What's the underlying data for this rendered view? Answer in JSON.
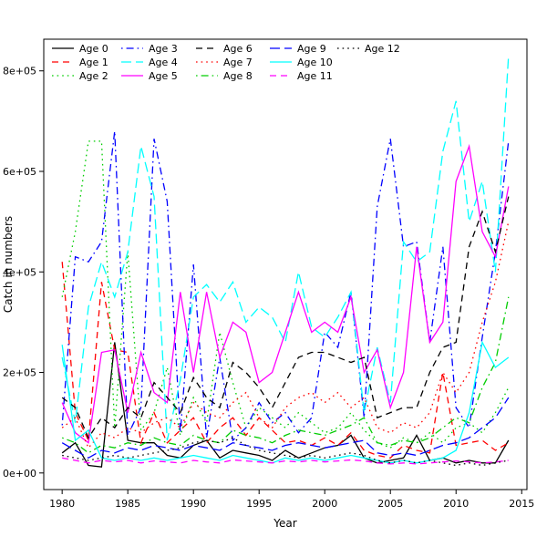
{
  "chart_data": {
    "type": "line",
    "title": "",
    "xlabel": "Year",
    "ylabel": "Catch in numbers",
    "grid": false,
    "legend_position": "top-inside",
    "legend_columns": 5,
    "xlim": [
      1978.6,
      2015.4
    ],
    "ylim": [
      -33000,
      863000
    ],
    "x_ticks": [
      1980,
      1985,
      1990,
      1995,
      2000,
      2005,
      2010,
      2015
    ],
    "y_ticks": [
      0,
      200000,
      400000,
      600000,
      800000
    ],
    "y_tick_labels": [
      "0e+00",
      "2e+05",
      "4e+05",
      "6e+05",
      "8e+05"
    ],
    "x": [
      1980,
      1981,
      1982,
      1983,
      1984,
      1985,
      1986,
      1987,
      1988,
      1989,
      1990,
      1991,
      1992,
      1993,
      1994,
      1995,
      1996,
      1997,
      1998,
      1999,
      2000,
      2001,
      2002,
      2003,
      2004,
      2005,
      2006,
      2007,
      2008,
      2009,
      2010,
      2011,
      2012,
      2013,
      2014
    ],
    "series": [
      {
        "name": "Age 0",
        "color": "#000000",
        "linestyle": "solid",
        "values": [
          40000,
          60000,
          15000,
          12000,
          260000,
          65000,
          60000,
          60000,
          35000,
          30000,
          55000,
          65000,
          30000,
          45000,
          40000,
          35000,
          25000,
          45000,
          30000,
          40000,
          50000,
          55000,
          75000,
          30000,
          20000,
          25000,
          30000,
          75000,
          25000,
          30000,
          20000,
          25000,
          20000,
          20000,
          65000
        ]
      },
      {
        "name": "Age 1",
        "color": "#FF0000",
        "linestyle": "dashed",
        "values": [
          420000,
          120000,
          65000,
          380000,
          245000,
          240000,
          60000,
          120000,
          60000,
          85000,
          110000,
          60000,
          90000,
          110000,
          75000,
          110000,
          85000,
          60000,
          65000,
          55000,
          70000,
          55000,
          80000,
          45000,
          35000,
          30000,
          55000,
          45000,
          40000,
          200000,
          55000,
          60000,
          65000,
          45000,
          60000
        ]
      },
      {
        "name": "Age 2",
        "color": "#00CD00",
        "linestyle": "dotted",
        "values": [
          350000,
          480000,
          660000,
          660000,
          90000,
          440000,
          85000,
          120000,
          210000,
          75000,
          150000,
          100000,
          280000,
          180000,
          90000,
          130000,
          110000,
          90000,
          120000,
          100000,
          80000,
          90000,
          120000,
          85000,
          60000,
          50000,
          70000,
          60000,
          80000,
          60000,
          90000,
          100000,
          80000,
          120000,
          170000
        ]
      },
      {
        "name": "Age 3",
        "color": "#0000FF",
        "linestyle": "dashdot",
        "values": [
          95000,
          430000,
          420000,
          460000,
          680000,
          75000,
          130000,
          665000,
          540000,
          80000,
          415000,
          70000,
          230000,
          65000,
          90000,
          140000,
          100000,
          120000,
          80000,
          110000,
          280000,
          250000,
          360000,
          110000,
          530000,
          665000,
          450000,
          460000,
          260000,
          450000,
          130000,
          90000,
          270000,
          440000,
          660000
        ]
      },
      {
        "name": "Age 4",
        "color": "#00FFFF",
        "linestyle": "longdash",
        "values": [
          230000,
          100000,
          330000,
          420000,
          350000,
          440000,
          650000,
          550000,
          65000,
          185000,
          350000,
          375000,
          340000,
          380000,
          300000,
          330000,
          310000,
          260000,
          400000,
          290000,
          270000,
          310000,
          360000,
          120000,
          250000,
          140000,
          460000,
          420000,
          440000,
          640000,
          740000,
          500000,
          580000,
          400000,
          830000
        ]
      },
      {
        "name": "Age 5",
        "color": "#FF00FF",
        "linestyle": "solid",
        "values": [
          140000,
          80000,
          60000,
          240000,
          245000,
          120000,
          240000,
          160000,
          140000,
          360000,
          200000,
          360000,
          230000,
          300000,
          280000,
          180000,
          200000,
          280000,
          360000,
          280000,
          300000,
          280000,
          350000,
          200000,
          245000,
          130000,
          200000,
          450000,
          260000,
          300000,
          580000,
          650000,
          480000,
          430000,
          570000
        ]
      },
      {
        "name": "Age 6",
        "color": "#000000",
        "linestyle": "dashed",
        "values": [
          150000,
          130000,
          70000,
          110000,
          90000,
          130000,
          110000,
          180000,
          150000,
          120000,
          190000,
          150000,
          130000,
          220000,
          200000,
          170000,
          130000,
          180000,
          230000,
          240000,
          240000,
          230000,
          220000,
          230000,
          110000,
          120000,
          130000,
          130000,
          200000,
          250000,
          260000,
          450000,
          520000,
          440000,
          550000
        ]
      },
      {
        "name": "Age 7",
        "color": "#FF0000",
        "linestyle": "dotted",
        "values": [
          90000,
          110000,
          50000,
          80000,
          70000,
          90000,
          80000,
          100000,
          110000,
          90000,
          140000,
          120000,
          110000,
          140000,
          160000,
          110000,
          90000,
          130000,
          150000,
          160000,
          140000,
          160000,
          130000,
          150000,
          90000,
          80000,
          100000,
          90000,
          120000,
          200000,
          160000,
          200000,
          300000,
          380000,
          500000
        ]
      },
      {
        "name": "Age 8",
        "color": "#00CD00",
        "linestyle": "dashdot",
        "values": [
          70000,
          60000,
          40000,
          55000,
          50000,
          60000,
          55000,
          70000,
          60000,
          55000,
          75000,
          65000,
          60000,
          85000,
          75000,
          70000,
          60000,
          75000,
          85000,
          80000,
          75000,
          85000,
          95000,
          110000,
          60000,
          55000,
          65000,
          60000,
          70000,
          90000,
          110000,
          100000,
          170000,
          220000,
          350000
        ]
      },
      {
        "name": "Age 9",
        "color": "#0000FF",
        "linestyle": "longdash",
        "values": [
          60000,
          45000,
          30000,
          45000,
          40000,
          50000,
          45000,
          55000,
          50000,
          45000,
          55000,
          50000,
          45000,
          60000,
          55000,
          50000,
          45000,
          55000,
          60000,
          55000,
          50000,
          55000,
          60000,
          65000,
          40000,
          35000,
          40000,
          35000,
          45000,
          55000,
          60000,
          70000,
          90000,
          110000,
          150000
        ]
      },
      {
        "name": "Age 10",
        "color": "#00FFFF",
        "linestyle": "solid",
        "values": [
          255000,
          65000,
          85000,
          30000,
          25000,
          30000,
          25000,
          30000,
          25000,
          30000,
          35000,
          30000,
          25000,
          35000,
          30000,
          25000,
          20000,
          30000,
          25000,
          30000,
          25000,
          30000,
          35000,
          30000,
          25000,
          20000,
          25000,
          20000,
          25000,
          30000,
          45000,
          120000,
          260000,
          210000,
          230000
        ]
      },
      {
        "name": "Age 11",
        "color": "#FF00FF",
        "linestyle": "dashed",
        "values": [
          30000,
          25000,
          20000,
          25000,
          22000,
          25000,
          20000,
          24000,
          22000,
          20000,
          25000,
          22000,
          20000,
          26000,
          24000,
          22000,
          20000,
          24000,
          22000,
          25000,
          22000,
          24000,
          26000,
          24000,
          20000,
          18000,
          20000,
          18000,
          20000,
          22000,
          24000,
          22000,
          20000,
          22000,
          25000
        ]
      },
      {
        "name": "Age 12",
        "color": "#000000",
        "linestyle": "dotted",
        "values": [
          35000,
          30000,
          25000,
          30000,
          35000,
          30000,
          35000,
          40000,
          45000,
          50000,
          60000,
          65000,
          60000,
          70000,
          55000,
          45000,
          40000,
          35000,
          30000,
          35000,
          30000,
          35000,
          40000,
          35000,
          25000,
          20000,
          25000,
          20000,
          25000,
          20000,
          15000,
          20000,
          15000,
          20000,
          25000
        ]
      }
    ]
  }
}
